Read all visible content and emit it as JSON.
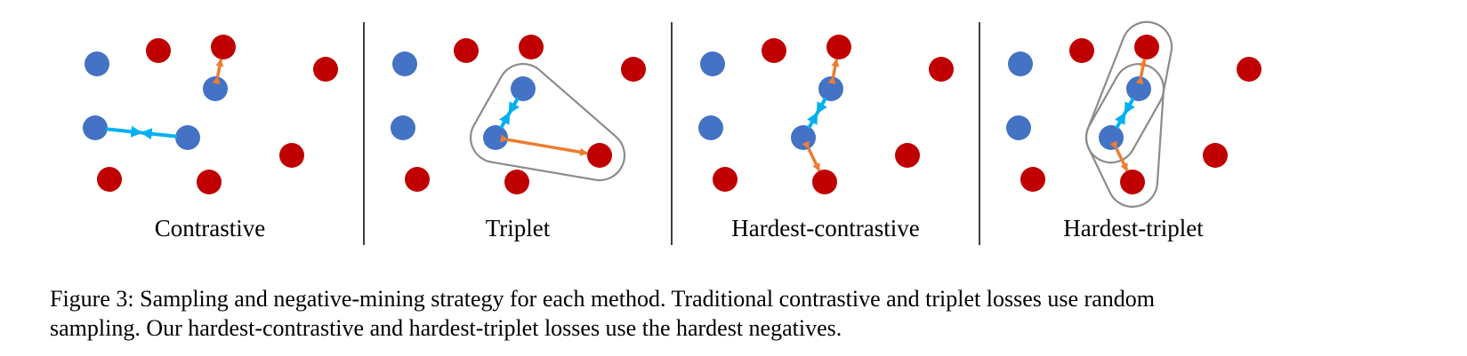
{
  "colors": {
    "positive_point": "#4472C4",
    "negative_point": "#C00000",
    "positive_pair_arrow": "#00B0F0",
    "negative_pair_arrow": "#ED7D31",
    "triplet_outline": "#8C8C8C",
    "divider": "#000000"
  },
  "panels": [
    {
      "label": "Contrastive",
      "blue": [
        [
          109,
          72
        ],
        [
          242,
          100
        ],
        [
          107,
          144
        ],
        [
          211,
          155
        ]
      ],
      "red": [
        [
          178,
          57
        ],
        [
          251,
          53
        ],
        [
          366,
          78
        ],
        [
          328,
          175
        ],
        [
          123,
          202
        ],
        [
          235,
          205
        ]
      ],
      "pos_arrows": [
        [
          107,
          144,
          211,
          155
        ]
      ],
      "neg_arrows": [
        [
          242,
          100,
          251,
          53
        ]
      ],
      "groups": []
    },
    {
      "label": "Triplet",
      "blue": [
        [
          455,
          72
        ],
        [
          588,
          100
        ],
        [
          453,
          144
        ],
        [
          557,
          155
        ]
      ],
      "red": [
        [
          524,
          57
        ],
        [
          597,
          53
        ],
        [
          712,
          78
        ],
        [
          674,
          175
        ],
        [
          469,
          202
        ],
        [
          581,
          205
        ]
      ],
      "pos_arrows": [
        [
          588,
          100,
          557,
          155
        ]
      ],
      "neg_arrows": [
        [
          557,
          155,
          674,
          175
        ]
      ],
      "groups": [
        [
          [
            588,
            100
          ],
          [
            557,
            155
          ],
          [
            674,
            175
          ]
        ]
      ]
    },
    {
      "label": "Hardest-contrastive",
      "blue": [
        [
          801,
          72
        ],
        [
          934,
          100
        ],
        [
          799,
          144
        ],
        [
          903,
          155
        ]
      ],
      "red": [
        [
          870,
          57
        ],
        [
          943,
          53
        ],
        [
          1058,
          78
        ],
        [
          1020,
          175
        ],
        [
          815,
          202
        ],
        [
          927,
          205
        ]
      ],
      "pos_arrows": [
        [
          934,
          100,
          903,
          155
        ]
      ],
      "neg_arrows": [
        [
          934,
          100,
          943,
          53
        ],
        [
          903,
          155,
          927,
          205
        ]
      ],
      "groups": []
    },
    {
      "label": "Hardest-triplet",
      "blue": [
        [
          1147,
          72
        ],
        [
          1280,
          100
        ],
        [
          1145,
          144
        ],
        [
          1249,
          155
        ]
      ],
      "red": [
        [
          1216,
          57
        ],
        [
          1289,
          53
        ],
        [
          1404,
          78
        ],
        [
          1366,
          175
        ],
        [
          1161,
          202
        ],
        [
          1273,
          205
        ]
      ],
      "pos_arrows": [
        [
          1280,
          100,
          1249,
          155
        ]
      ],
      "neg_arrows": [
        [
          1280,
          100,
          1289,
          53
        ],
        [
          1249,
          155,
          1273,
          205
        ]
      ],
      "groups": [
        [
          [
            1280,
            100
          ],
          [
            1249,
            155
          ],
          [
            1289,
            53
          ]
        ],
        [
          [
            1280,
            100
          ],
          [
            1249,
            155
          ],
          [
            1273,
            205
          ]
        ]
      ]
    }
  ],
  "caption": {
    "line1": "Figure 3:  Sampling and negative-mining strategy for each method.  Traditional contrastive and triplet losses use random",
    "line2": "sampling. Our hardest-contrastive and hardest-triplet losses use the hardest negatives."
  }
}
